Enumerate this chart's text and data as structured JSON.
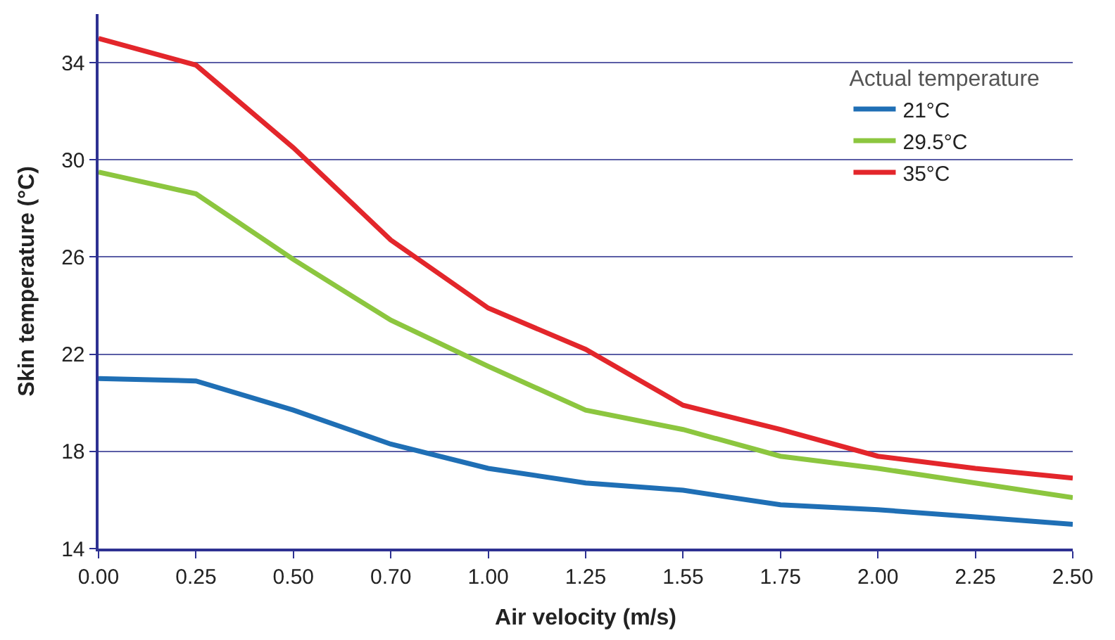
{
  "chart_data": {
    "type": "line",
    "xlabel": "Air velocity (m/s)",
    "ylabel": "Skin temperature (°C)",
    "legend_title": "Actual temperature",
    "categories": [
      "0.00",
      "0.25",
      "0.50",
      "0.70",
      "1.00",
      "1.25",
      "1.55",
      "1.75",
      "2.00",
      "2.25",
      "2.50"
    ],
    "series": [
      {
        "name": "21°C",
        "color": "#1f6fb5",
        "values": [
          21.0,
          20.9,
          19.7,
          18.3,
          17.3,
          16.7,
          16.4,
          15.8,
          15.6,
          15.3,
          15.0
        ]
      },
      {
        "name": "29.5°C",
        "color": "#8cc63f",
        "values": [
          29.5,
          28.6,
          25.9,
          23.4,
          21.5,
          19.7,
          18.9,
          17.8,
          17.3,
          16.7,
          16.1
        ]
      },
      {
        "name": "35°C",
        "color": "#e3262b",
        "values": [
          35.0,
          33.9,
          30.5,
          26.7,
          23.9,
          22.2,
          19.9,
          18.9,
          17.8,
          17.3,
          16.9
        ]
      }
    ],
    "ylim": [
      14,
      36
    ],
    "yticks": [
      14,
      18,
      22,
      26,
      30,
      34
    ],
    "grid": "y",
    "legend": "top right",
    "marker": "none",
    "line_style": "solid"
  }
}
